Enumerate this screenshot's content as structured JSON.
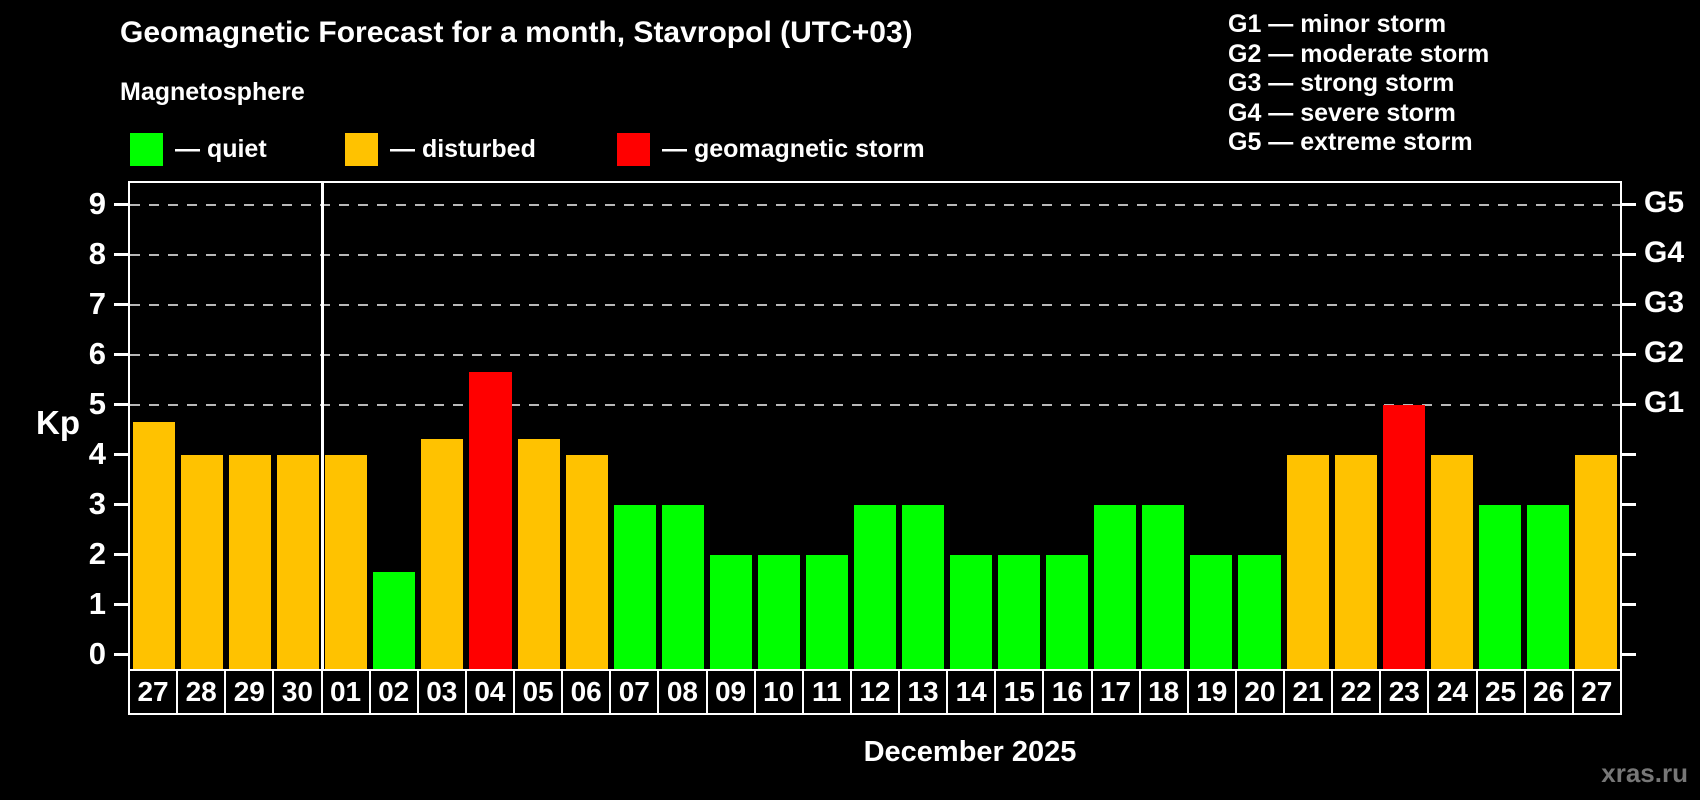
{
  "title": "Geomagnetic Forecast for a month, Stavropol (UTC+03)",
  "subtitle": "Magnetosphere",
  "legend": {
    "items": [
      {
        "key": "quiet",
        "label": "— quiet",
        "color": "#00ff00"
      },
      {
        "key": "disturbed",
        "label": "— disturbed",
        "color": "#ffc200"
      },
      {
        "key": "storm",
        "label": "— geomagnetic storm",
        "color": "#ff0000"
      }
    ]
  },
  "g_legend": {
    "items": [
      "G1 — minor storm",
      "G2 — moderate storm",
      "G3 — strong storm",
      "G4 — severe storm",
      "G5 — extreme storm"
    ]
  },
  "axes": {
    "kp_label": "Kp",
    "left_ticks": [
      0,
      1,
      2,
      3,
      4,
      5,
      6,
      7,
      8,
      9
    ],
    "right_ticks": [
      0,
      1,
      2,
      3,
      4,
      5,
      6,
      7,
      8,
      9
    ],
    "right_labels": [
      {
        "kp": 5,
        "label": "G1"
      },
      {
        "kp": 6,
        "label": "G2"
      },
      {
        "kp": 7,
        "label": "G3"
      },
      {
        "kp": 8,
        "label": "G4"
      },
      {
        "kp": 9,
        "label": "G5"
      }
    ],
    "gridline_levels": [
      5,
      6,
      7,
      8,
      9
    ]
  },
  "footer": {
    "month_label": "December 2025",
    "watermark": "xras.ru"
  },
  "chart_data": {
    "type": "bar",
    "title": "Geomagnetic Forecast for a month, Stavropol (UTC+03)",
    "xlabel": "December 2025",
    "ylabel": "Kp",
    "ylim": [
      0,
      9
    ],
    "grid": "horizontal dashed lines at Kp 5,6,7,8,9 (storm levels G1–G5)",
    "legend_position": "top-left",
    "categories": [
      "27",
      "28",
      "29",
      "30",
      "01",
      "02",
      "03",
      "04",
      "05",
      "06",
      "07",
      "08",
      "09",
      "10",
      "11",
      "12",
      "13",
      "14",
      "15",
      "16",
      "17",
      "18",
      "19",
      "20",
      "21",
      "22",
      "23",
      "24",
      "25",
      "26",
      "27"
    ],
    "values": [
      4.67,
      4,
      4,
      4,
      4,
      1.67,
      4.33,
      5.67,
      4.33,
      4,
      3,
      3,
      2,
      2,
      2,
      3,
      3,
      2,
      2,
      2,
      3,
      3,
      2,
      2,
      4,
      4,
      5,
      4,
      3,
      3,
      4
    ],
    "statuses": [
      "disturbed",
      "disturbed",
      "disturbed",
      "disturbed",
      "disturbed",
      "quiet",
      "disturbed",
      "storm",
      "disturbed",
      "disturbed",
      "quiet",
      "quiet",
      "quiet",
      "quiet",
      "quiet",
      "quiet",
      "quiet",
      "quiet",
      "quiet",
      "quiet",
      "quiet",
      "quiet",
      "quiet",
      "quiet",
      "disturbed",
      "disturbed",
      "storm",
      "disturbed",
      "quiet",
      "quiet",
      "disturbed"
    ],
    "color_map": {
      "quiet": "#00ff00",
      "disturbed": "#ffc200",
      "storm": "#ff0000"
    },
    "month_separator_after_index": 3
  }
}
